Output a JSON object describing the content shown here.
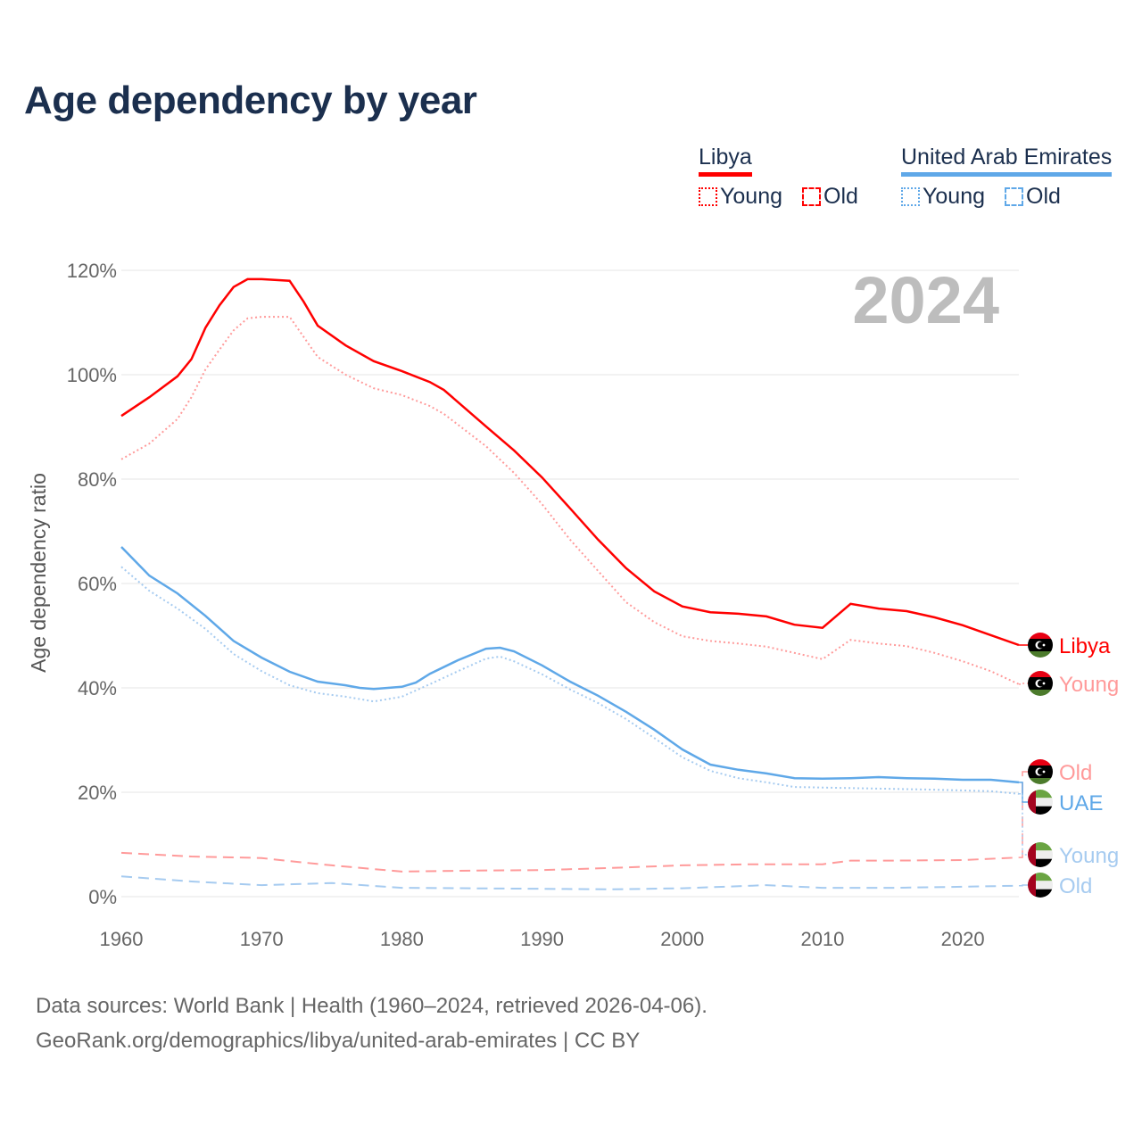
{
  "title": "Age dependency by year",
  "legend": {
    "groups": [
      {
        "country": "Libya",
        "color": "#ff0000",
        "items": [
          {
            "label": "Young",
            "style": "dotted"
          },
          {
            "label": "Old",
            "style": "dashed"
          }
        ]
      },
      {
        "country": "United Arab Emirates",
        "color": "#5fa8e8",
        "items": [
          {
            "label": "Young",
            "style": "dotted"
          },
          {
            "label": "Old",
            "style": "dashed"
          }
        ]
      }
    ]
  },
  "year_watermark": "2024",
  "footer": {
    "line1": "Data sources: World Bank | Health (1960–2024, retrieved 2026-04-06).",
    "line2": "GeoRank.org/demographics/libya/united-arab-emirates | CC BY"
  },
  "chart_data": {
    "type": "line",
    "title": "Age dependency by year",
    "xlabel": "",
    "ylabel": "Age dependency ratio",
    "xlim": [
      1960,
      2024
    ],
    "ylim": [
      0,
      120
    ],
    "x_ticks": [
      "1960",
      "1970",
      "1980",
      "1990",
      "2000",
      "2010",
      "2020"
    ],
    "y_ticks": [
      "0%",
      "20%",
      "40%",
      "60%",
      "80%",
      "100%",
      "120%"
    ],
    "grid": true,
    "series": [
      {
        "name": "Libya",
        "end_label": "Libya",
        "country": "libya",
        "style": "solid",
        "color": "#ff0000",
        "x": [
          1960,
          1962,
          1964,
          1965,
          1966,
          1967,
          1968,
          1969,
          1970,
          1972,
          1973,
          1974,
          1976,
          1978,
          1980,
          1982,
          1983,
          1986,
          1988,
          1990,
          1992,
          1994,
          1996,
          1998,
          2000,
          2002,
          2004,
          2006,
          2008,
          2010,
          2012,
          2014,
          2016,
          2018,
          2020,
          2022,
          2024
        ],
        "values": [
          92.1,
          95.7,
          99.7,
          103,
          109,
          113.3,
          116.8,
          118.3,
          118.3,
          118,
          114,
          109.4,
          105.6,
          102.6,
          100.7,
          98.6,
          97.1,
          90.1,
          85.5,
          80.3,
          74.4,
          68.4,
          62.9,
          58.5,
          55.6,
          54.5,
          54.2,
          53.7,
          52.1,
          51.5,
          56.1,
          55.2,
          54.7,
          53.5,
          52,
          50.1,
          48.2
        ]
      },
      {
        "name": "Libya Young",
        "end_label": "Young",
        "country": "libya",
        "style": "dotted",
        "color": "#ff9a9a",
        "x": [
          1960,
          1962,
          1964,
          1965,
          1966,
          1967,
          1968,
          1969,
          1970,
          1972,
          1974,
          1976,
          1978,
          1980,
          1982,
          1983,
          1986,
          1988,
          1990,
          1992,
          1994,
          1996,
          1998,
          2000,
          2002,
          2004,
          2006,
          2008,
          2010,
          2012,
          2014,
          2016,
          2018,
          2020,
          2022,
          2024
        ],
        "values": [
          83.8,
          86.8,
          91.5,
          95.7,
          101,
          104.8,
          108.5,
          110.8,
          111.1,
          111.1,
          103.4,
          100,
          97.4,
          96.1,
          94,
          92.5,
          86.3,
          81.2,
          75.2,
          68.4,
          62.4,
          56.4,
          52.6,
          49.9,
          49,
          48.5,
          47.9,
          46.7,
          45.5,
          49.2,
          48.5,
          48,
          46.7,
          45.1,
          43.2,
          40.7
        ]
      },
      {
        "name": "Libya Old",
        "end_label": "Old",
        "country": "libya",
        "style": "dashed",
        "color": "#ff9a9a",
        "x": [
          1960,
          1965,
          1970,
          1972,
          1975,
          1980,
          1985,
          1990,
          1995,
          2000,
          2005,
          2010,
          2012,
          2015,
          2020,
          2024
        ],
        "values": [
          8.4,
          7.7,
          7.4,
          6.8,
          6,
          4.8,
          5,
          5.1,
          5.5,
          6,
          6.2,
          6.2,
          6.9,
          6.9,
          7,
          7.5
        ]
      },
      {
        "name": "UAE",
        "end_label": "UAE",
        "country": "uae",
        "style": "solid",
        "color": "#5fa8e8",
        "x": [
          1960,
          1962,
          1964,
          1966,
          1968,
          1970,
          1972,
          1974,
          1976,
          1977,
          1978,
          1980,
          1981,
          1982,
          1984,
          1986,
          1987,
          1988,
          1990,
          1992,
          1994,
          1996,
          1998,
          2000,
          2002,
          2004,
          2006,
          2008,
          2010,
          2012,
          2014,
          2016,
          2018,
          2020,
          2022,
          2024
        ],
        "values": [
          67,
          61.5,
          58.1,
          53.8,
          49,
          45.8,
          43.1,
          41.2,
          40.5,
          40,
          39.8,
          40.2,
          41,
          42.7,
          45.3,
          47.5,
          47.7,
          47,
          44.3,
          41.2,
          38.5,
          35.4,
          32,
          28.2,
          25.3,
          24.3,
          23.6,
          22.7,
          22.6,
          22.7,
          22.9,
          22.7,
          22.6,
          22.4,
          22.4,
          21.9
        ]
      },
      {
        "name": "UAE Young",
        "end_label": "Young",
        "country": "uae",
        "style": "dotted",
        "color": "#a6cbf0",
        "x": [
          1960,
          1962,
          1964,
          1966,
          1968,
          1970,
          1972,
          1974,
          1976,
          1978,
          1980,
          1982,
          1984,
          1986,
          1987,
          1988,
          1990,
          1992,
          1994,
          1996,
          1998,
          2000,
          2002,
          2004,
          2006,
          2008,
          2010,
          2014,
          2018,
          2022,
          2024
        ],
        "values": [
          63.2,
          58.6,
          55.2,
          51.3,
          46.5,
          43.2,
          40.5,
          39,
          38.3,
          37.4,
          38.3,
          40.7,
          43.2,
          45.6,
          46,
          45.1,
          42.6,
          39.7,
          37.1,
          34,
          30.4,
          26.7,
          24.1,
          22.7,
          21.9,
          21,
          20.9,
          20.7,
          20.5,
          20.2,
          19.7
        ]
      },
      {
        "name": "UAE Old",
        "end_label": "Old",
        "country": "uae",
        "style": "dashed",
        "color": "#a6cbf0",
        "x": [
          1960,
          1965,
          1970,
          1975,
          1980,
          1990,
          1995,
          2000,
          2005,
          2006,
          2010,
          2015,
          2020,
          2024
        ],
        "values": [
          3.9,
          2.9,
          2.2,
          2.6,
          1.7,
          1.5,
          1.4,
          1.6,
          2.1,
          2.2,
          1.7,
          1.7,
          1.9,
          2.1
        ]
      }
    ]
  }
}
